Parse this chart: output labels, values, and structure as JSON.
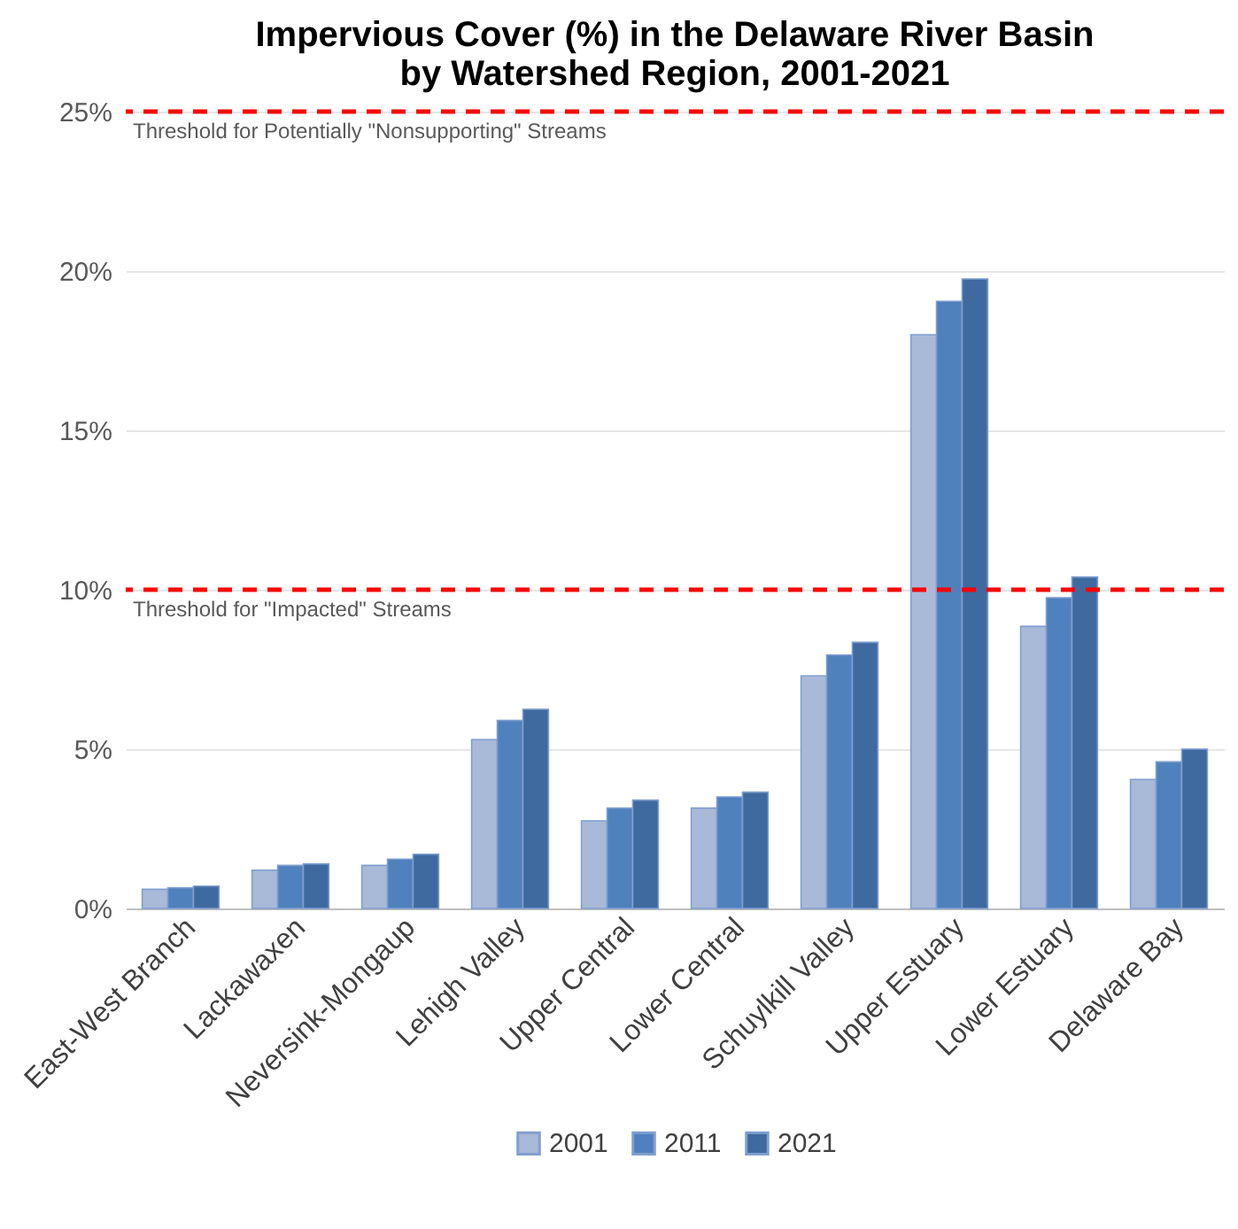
{
  "chart_data": {
    "type": "bar",
    "title": "Impervious Cover (%) in the Delaware River Basin\nby Watershed Region, 2001-2021",
    "categories": [
      "East-West Branch",
      "Lackawaxen",
      "Neversink-Mongaup",
      "Lehigh Valley",
      "Upper Central",
      "Lower Central",
      "Schuylkill Valley",
      "Upper Estuary",
      "Lower Estuary",
      "Delaware Bay"
    ],
    "series": [
      {
        "name": "2001",
        "color": "#a9b9d8",
        "values": [
          0.6,
          1.2,
          1.35,
          5.3,
          2.75,
          3.15,
          7.3,
          18.0,
          8.85,
          4.05
        ]
      },
      {
        "name": "2011",
        "color": "#4f81bd",
        "values": [
          0.65,
          1.35,
          1.55,
          5.9,
          3.15,
          3.5,
          7.95,
          19.05,
          9.75,
          4.6
        ]
      },
      {
        "name": "2021",
        "color": "#3f6a9f",
        "values": [
          0.7,
          1.4,
          1.7,
          6.25,
          3.4,
          3.65,
          8.35,
          19.75,
          10.4,
          5.0
        ]
      }
    ],
    "ylim": [
      0,
      25
    ],
    "yticks": [
      {
        "value": 0,
        "label": "0%"
      },
      {
        "value": 5,
        "label": "5%"
      },
      {
        "value": 10,
        "label": "10%"
      },
      {
        "value": 15,
        "label": "15%"
      },
      {
        "value": 20,
        "label": "20%"
      },
      {
        "value": 25,
        "label": "25%"
      }
    ],
    "ref_lines": [
      {
        "axis": "y",
        "value": 25,
        "label": "Threshold for Potentially \"Nonsupporting\" Streams",
        "color": "#ff0000",
        "line_style": "dashed"
      },
      {
        "axis": "y",
        "value": 10,
        "label": "Threshold for \"Impacted\" Streams",
        "color": "#ff0000",
        "line_style": "dashed"
      }
    ],
    "grid": "y",
    "legend": "bottom"
  }
}
